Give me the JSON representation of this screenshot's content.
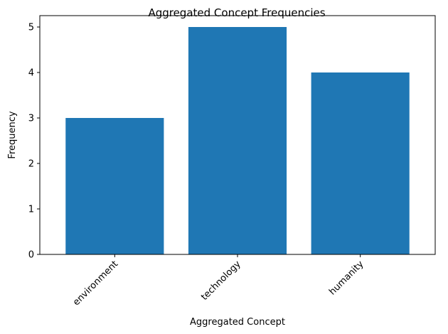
{
  "chart_data": {
    "type": "bar",
    "title": "Aggregated Concept Frequencies",
    "xlabel": "Aggregated Concept",
    "ylabel": "Frequency",
    "categories": [
      "environment",
      "technology",
      "humanity"
    ],
    "values": [
      3,
      5,
      4
    ],
    "ylim": [
      0,
      5.25
    ],
    "yticks": [
      0,
      1,
      2,
      3,
      4,
      5
    ],
    "bar_color": "#1f77b4",
    "grid": false,
    "xtick_rotation_deg": 45
  }
}
